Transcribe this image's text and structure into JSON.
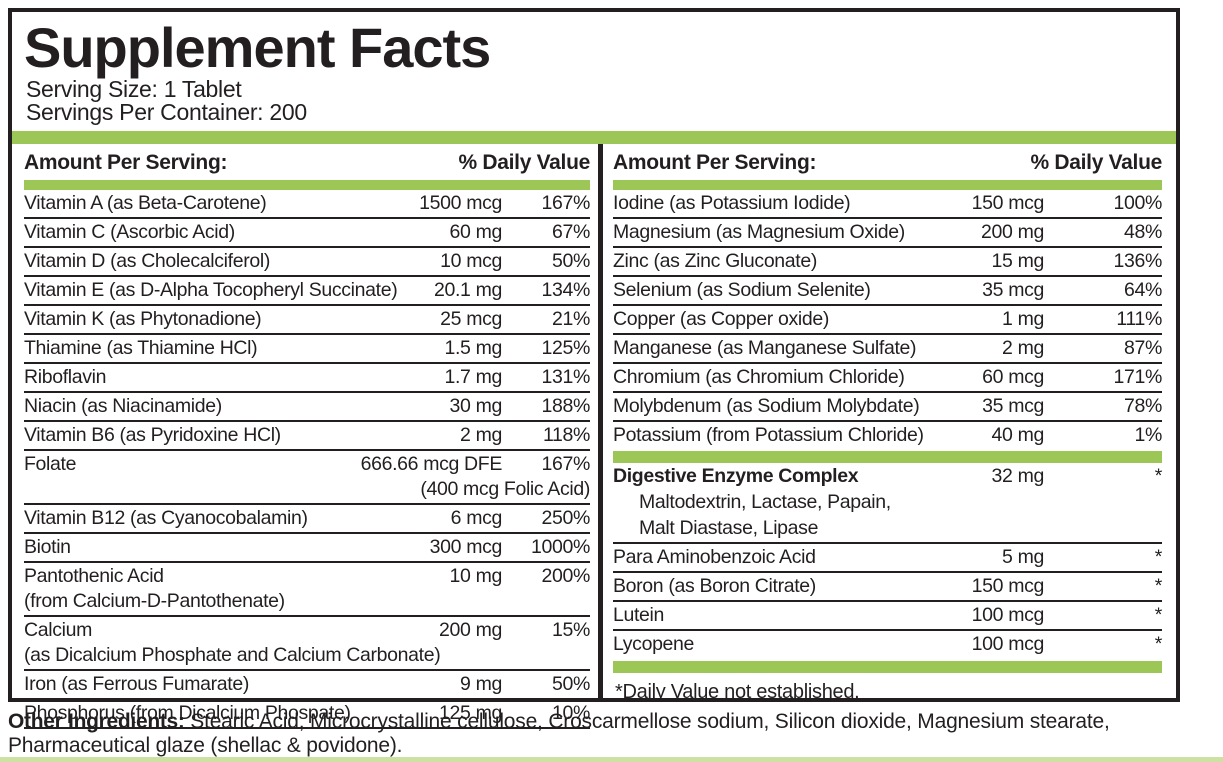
{
  "label": {
    "title": "Supplement Facts",
    "serving_size": "Serving Size: 1 Tablet",
    "servings_per_container": "Servings Per Container: 200",
    "column_header": {
      "amount": "Amount Per Serving:",
      "daily_value": "% Daily Value"
    },
    "footnote": "*Daily Value not established.",
    "other_ingredients_label": "Other Ingredients:",
    "other_ingredients_text": " Stearic Acid, Microcrystalline cellulose, Croscarmellose sodium, Silicon dioxide, Magnesium stearate, Pharmaceutical glaze (shellac & povidone).",
    "colors": {
      "accent_green": "#9cc655",
      "text": "#231f20",
      "bottom_strip": "#cde2a2"
    }
  },
  "left_column": {
    "rows": [
      {
        "name": "Vitamin A (as Beta-Carotene)",
        "amount": "1500 mcg",
        "dv": "167%"
      },
      {
        "name": "Vitamin C (Ascorbic Acid)",
        "amount": "60 mg",
        "dv": "67%"
      },
      {
        "name": "Vitamin D (as Cholecalciferol)",
        "amount": "10 mcg",
        "dv": "50%"
      },
      {
        "name": "Vitamin E (as D-Alpha Tocopheryl Succinate)",
        "amount": "20.1 mg",
        "dv": "134%"
      },
      {
        "name": "Vitamin K (as Phytonadione)",
        "amount": "25 mcg",
        "dv": "21%"
      },
      {
        "name": "Thiamine (as Thiamine HCl)",
        "amount": "1.5 mg",
        "dv": "125%"
      },
      {
        "name": "Riboflavin",
        "amount": "1.7 mg",
        "dv": "131%"
      },
      {
        "name": "Niacin (as Niacinamide)",
        "amount": "30 mg",
        "dv": "188%"
      },
      {
        "name": "Vitamin B6 (as Pyridoxine HCl)",
        "amount": "2 mg",
        "dv": "118%"
      },
      {
        "name": "Folate",
        "amount": "666.66 mcg DFE",
        "dv": "167%",
        "amount2": "(400 mcg Folic Acid)"
      },
      {
        "name": "Vitamin B12 (as Cyanocobalamin)",
        "amount": "6 mcg",
        "dv": "250%"
      },
      {
        "name": "Biotin",
        "amount": "300 mcg",
        "dv": "1000%"
      },
      {
        "name": "Pantothenic Acid",
        "amount": "10 mg",
        "dv": "200%",
        "name2": "(from Calcium-D-Pantothenate)"
      },
      {
        "name": "Calcium",
        "amount": "200 mg",
        "dv": "15%",
        "name2": "(as Dicalcium Phosphate and Calcium Carbonate)"
      },
      {
        "name": "Iron (as Ferrous Fumarate)",
        "amount": "9 mg",
        "dv": "50%"
      },
      {
        "name": "Phosphorus (from Dicalcium Phospate)",
        "amount": "125 mg",
        "dv": "10%"
      }
    ]
  },
  "right_column": {
    "rows": [
      {
        "name": "Iodine (as Potassium Iodide)",
        "amount": "150 mcg",
        "dv": "100%"
      },
      {
        "name": "Magnesium (as Magnesium Oxide)",
        "amount": "200 mg",
        "dv": "48%"
      },
      {
        "name": "Zinc (as Zinc Gluconate)",
        "amount": "15 mg",
        "dv": "136%"
      },
      {
        "name": "Selenium (as Sodium Selenite)",
        "amount": "35 mcg",
        "dv": "64%"
      },
      {
        "name": "Copper (as Copper oxide)",
        "amount": "1 mg",
        "dv": "111%"
      },
      {
        "name": "Manganese (as Manganese Sulfate)",
        "amount": "2 mg",
        "dv": "87%"
      },
      {
        "name": "Chromium (as Chromium Chloride)",
        "amount": "60 mcg",
        "dv": "171%"
      },
      {
        "name": "Molybdenum (as Sodium Molybdate)",
        "amount": "35 mcg",
        "dv": "78%"
      },
      {
        "name": "Potassium (from Potassium Chloride)",
        "amount": "40 mg",
        "dv": "1%"
      }
    ],
    "special_rows": [
      {
        "name": "Digestive Enzyme Complex",
        "bold": true,
        "amount": "32 mg",
        "dv": "*",
        "sub": [
          "Maltodextrin, Lactase, Papain,",
          "Malt Diastase, Lipase"
        ]
      },
      {
        "name": "Para Aminobenzoic Acid",
        "amount": "5 mg",
        "dv": "*"
      },
      {
        "name": "Boron (as Boron Citrate)",
        "amount": "150 mcg",
        "dv": "*"
      },
      {
        "name": "Lutein",
        "amount": "100 mcg",
        "dv": "*"
      },
      {
        "name": "Lycopene",
        "amount": "100 mcg",
        "dv": "*"
      }
    ]
  }
}
